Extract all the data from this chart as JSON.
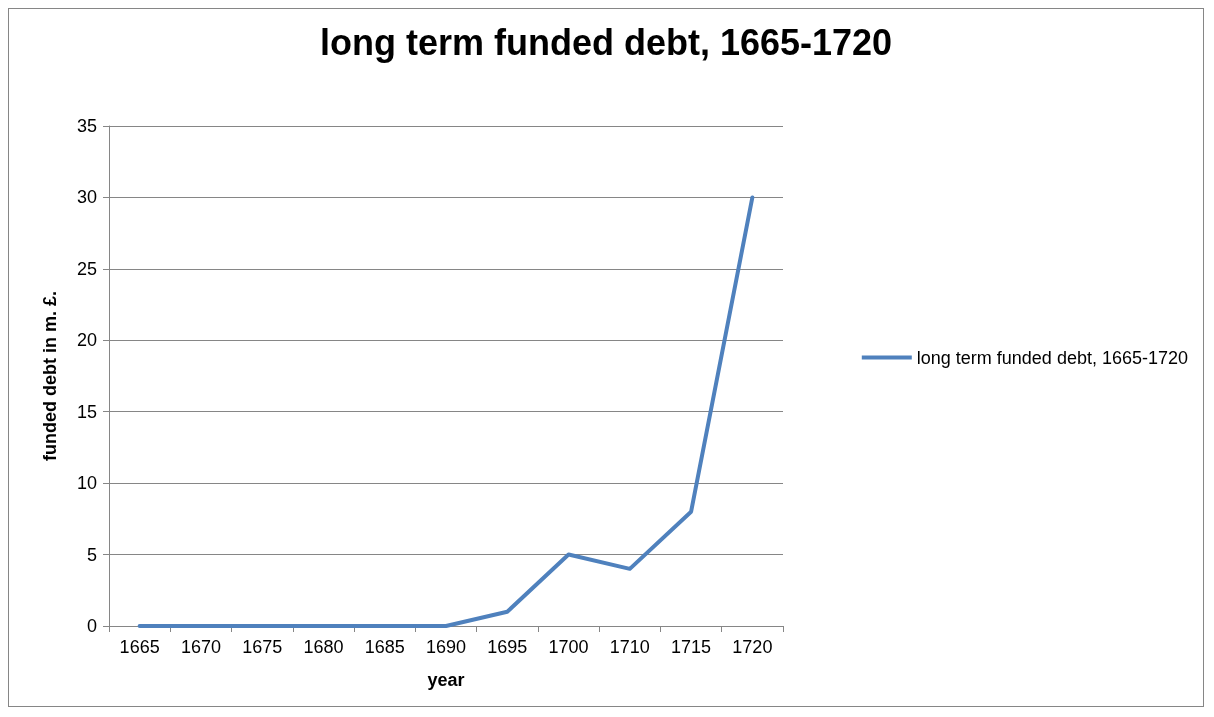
{
  "chart_data": {
    "type": "line",
    "title": "long term funded debt, 1665-1720",
    "xlabel": "year",
    "ylabel": "funded debt in m. £.",
    "categories": [
      "1665",
      "1670",
      "1675",
      "1680",
      "1685",
      "1690",
      "1695",
      "1700",
      "1710",
      "1715",
      "1720"
    ],
    "series": [
      {
        "name": "long term funded debt, 1665-1720",
        "color": "#4f81bd",
        "values": [
          0,
          0,
          0,
          0,
          0,
          0,
          1,
          5,
          4,
          8,
          30
        ]
      }
    ],
    "ylim": [
      0,
      35
    ],
    "yticks": [
      0,
      5,
      10,
      15,
      20,
      25,
      30,
      35
    ],
    "grid": "y",
    "legend": "right",
    "marker": "none",
    "line_style": "solid"
  }
}
